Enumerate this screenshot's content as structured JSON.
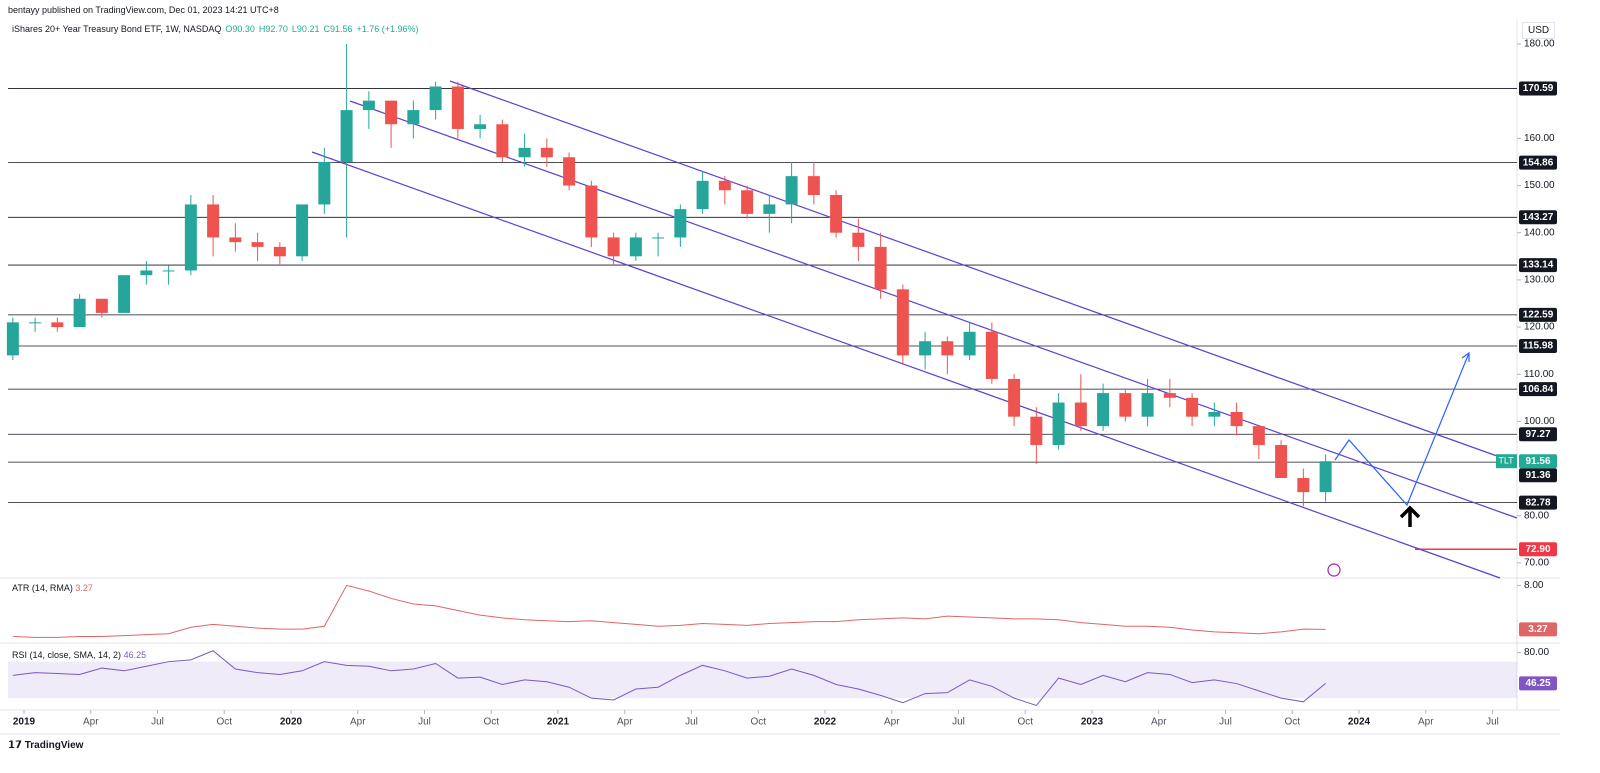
{
  "header": {
    "publisher": "bentayy published on TradingView.com, Dec 01, 2023 14:21 UTC+8",
    "legend": [
      "iShares 20+ Year Treasury Bond ETF, 1W, NASDAQ",
      "O90.30",
      "H92.70",
      "L90.21",
      "C91.56",
      "+1.76 (+1.96%)"
    ],
    "currency": "USD",
    "footer": "TradingView"
  },
  "chart_data": [
    {
      "type": "candlestick",
      "up_color": "#26a69a",
      "down_color": "#ef5350",
      "x": [
        "2018-12",
        "2019-01",
        "2019-02",
        "2019-03",
        "2019-04",
        "2019-05",
        "2019-06",
        "2019-07",
        "2019-08",
        "2019-09",
        "2019-10",
        "2019-11",
        "2019-12",
        "2020-01",
        "2020-02",
        "2020-03",
        "2020-04",
        "2020-05",
        "2020-06",
        "2020-07",
        "2020-08",
        "2020-09",
        "2020-10",
        "2020-11",
        "2020-12",
        "2021-01",
        "2021-02",
        "2021-03",
        "2021-04",
        "2021-05",
        "2021-06",
        "2021-07",
        "2021-08",
        "2021-09",
        "2021-10",
        "2021-11",
        "2021-12",
        "2022-01",
        "2022-02",
        "2022-03",
        "2022-04",
        "2022-05",
        "2022-06",
        "2022-07",
        "2022-08",
        "2022-09",
        "2022-10",
        "2022-11",
        "2022-12",
        "2023-01",
        "2023-02",
        "2023-03",
        "2023-04",
        "2023-05",
        "2023-06",
        "2023-07",
        "2023-08",
        "2023-09",
        "2023-10",
        "2023-11"
      ],
      "open": [
        114,
        121,
        121,
        120,
        126,
        123,
        131,
        132,
        132,
        146,
        139,
        138,
        137,
        135,
        146,
        155,
        166,
        168,
        163,
        166,
        171,
        162,
        163,
        156,
        158,
        156,
        150,
        139,
        135,
        139,
        139,
        145,
        151,
        149,
        144,
        146,
        152,
        148,
        140,
        137,
        128,
        114,
        117,
        114,
        119,
        109,
        101,
        95,
        104,
        99,
        106,
        101,
        106,
        105,
        101,
        102,
        99,
        95,
        88,
        85
      ],
      "high": [
        122,
        122,
        122,
        127,
        126,
        131,
        134,
        133,
        148,
        148,
        142,
        140,
        138,
        146,
        158,
        180,
        170,
        168,
        168,
        172,
        172,
        165,
        164,
        161,
        160,
        157,
        151,
        140,
        140,
        140,
        146,
        153,
        152,
        150,
        148,
        155,
        155,
        149,
        143,
        140,
        129,
        119,
        118,
        121,
        121,
        110,
        103,
        106,
        110,
        108,
        107,
        109,
        109,
        106,
        104,
        104,
        99,
        96,
        90,
        93
      ],
      "low": [
        113,
        119,
        119,
        120,
        122,
        123,
        129,
        129,
        131,
        135,
        136,
        134,
        133,
        134,
        144,
        139,
        162,
        158,
        160,
        164,
        160,
        160,
        155,
        154,
        154,
        149,
        137,
        133,
        134,
        135,
        137,
        144,
        146,
        143,
        140,
        142,
        146,
        139,
        134,
        126,
        112,
        111,
        110,
        113,
        108,
        99,
        91,
        94,
        98,
        98,
        100,
        99,
        103,
        99,
        99,
        97,
        92,
        88,
        82,
        83
      ],
      "close": [
        121,
        121,
        120,
        126,
        123,
        131,
        132,
        132,
        146,
        139,
        138,
        137,
        135,
        146,
        155,
        166,
        168,
        163,
        166,
        171,
        162,
        163,
        156,
        158,
        156,
        150,
        139,
        135,
        139,
        139,
        145,
        151,
        149,
        144,
        146,
        152,
        148,
        140,
        137,
        128,
        114,
        117,
        114,
        119,
        109,
        101,
        95,
        104,
        99,
        106,
        101,
        106,
        105,
        101,
        102,
        99,
        95,
        88,
        85,
        91.56
      ],
      "ylim": [
        66.8,
        185.1
      ],
      "yticks": [
        {
          "value": 180,
          "label": "180.00"
        },
        {
          "value": 160,
          "label": "160.00"
        },
        {
          "value": 150,
          "label": "150.00"
        },
        {
          "value": 140,
          "label": "140.00"
        },
        {
          "value": 130,
          "label": "130.00"
        },
        {
          "value": 120,
          "label": "120.00"
        },
        {
          "value": 110,
          "label": "110.00"
        },
        {
          "value": 100,
          "label": "100.00"
        },
        {
          "value": 80,
          "label": "80.00"
        },
        {
          "value": 70,
          "label": "70.00"
        }
      ],
      "levels": [
        170.59,
        154.86,
        143.27,
        133.14,
        122.59,
        115.98,
        106.84,
        97.27,
        91.36,
        82.78
      ],
      "target": {
        "value": 72.9,
        "label": "72.90",
        "color": "#f23645"
      },
      "last": {
        "name": "TLT",
        "value": 91.56,
        "color": "#22ab94"
      },
      "xticks": [
        {
          "value": "2019-01",
          "label": "2019"
        },
        {
          "value": "2019-04",
          "label": "Apr"
        },
        {
          "value": "2019-07",
          "label": "Jul"
        },
        {
          "value": "2019-10",
          "label": "Oct"
        },
        {
          "value": "2020-01",
          "label": "2020"
        },
        {
          "value": "2020-04",
          "label": "Apr"
        },
        {
          "value": "2020-07",
          "label": "Jul"
        },
        {
          "value": "2020-10",
          "label": "Oct"
        },
        {
          "value": "2021-01",
          "label": "2021"
        },
        {
          "value": "2021-04",
          "label": "Apr"
        },
        {
          "value": "2021-07",
          "label": "Jul"
        },
        {
          "value": "2021-10",
          "label": "Oct"
        },
        {
          "value": "2022-01",
          "label": "2022"
        },
        {
          "value": "2022-04",
          "label": "Apr"
        },
        {
          "value": "2022-07",
          "label": "Jul"
        },
        {
          "value": "2022-10",
          "label": "Oct"
        },
        {
          "value": "2023-01",
          "label": "2023"
        },
        {
          "value": "2023-04",
          "label": "Apr"
        },
        {
          "value": "2023-07",
          "label": "Jul"
        },
        {
          "value": "2023-10",
          "label": "Oct"
        },
        {
          "value": "2024-01",
          "label": "2024"
        },
        {
          "value": "2024-04",
          "label": "Apr"
        },
        {
          "value": "2024-07",
          "label": "Jul"
        }
      ]
    },
    {
      "type": "line",
      "title": "ATR (14, RMA)",
      "color": "#e06666",
      "last": 3.27,
      "values": [
        2.5,
        2.4,
        2.4,
        2.5,
        2.5,
        2.6,
        2.7,
        2.8,
        3.5,
        3.8,
        3.6,
        3.4,
        3.3,
        3.3,
        3.6,
        8.0,
        7.4,
        6.6,
        6.0,
        5.8,
        5.3,
        4.8,
        4.5,
        4.3,
        4.2,
        4.1,
        4.2,
        4.0,
        3.8,
        3.6,
        3.7,
        3.9,
        3.8,
        3.7,
        3.9,
        4.0,
        4.1,
        4.1,
        4.3,
        4.4,
        4.5,
        4.4,
        4.7,
        4.6,
        4.5,
        4.4,
        4.4,
        4.3,
        4.0,
        3.8,
        3.6,
        3.6,
        3.5,
        3.2,
        3.0,
        2.9,
        2.8,
        3.0,
        3.3,
        3.27
      ],
      "ylim": [
        1.8,
        8.8
      ],
      "yticks": [
        {
          "value": 8,
          "label": "8.00"
        }
      ]
    },
    {
      "type": "line",
      "title": "RSI (14, close, SMA, 14, 2)",
      "color": "#7e57c2",
      "last": 46.25,
      "band": [
        30,
        70
      ],
      "values": [
        55,
        58,
        57,
        56,
        63,
        60,
        65,
        70,
        72,
        82,
        62,
        58,
        56,
        60,
        70,
        66,
        65,
        60,
        62,
        68,
        52,
        53,
        45,
        50,
        48,
        42,
        30,
        28,
        40,
        42,
        55,
        66,
        60,
        52,
        54,
        62,
        55,
        45,
        40,
        33,
        25,
        35,
        36,
        50,
        43,
        30,
        22,
        52,
        45,
        55,
        48,
        58,
        56,
        47,
        50,
        46,
        38,
        30,
        26,
        46.25
      ],
      "ylim": [
        17,
        90.5
      ],
      "yticks": [
        {
          "value": 80,
          "label": "80.00"
        }
      ]
    }
  ]
}
